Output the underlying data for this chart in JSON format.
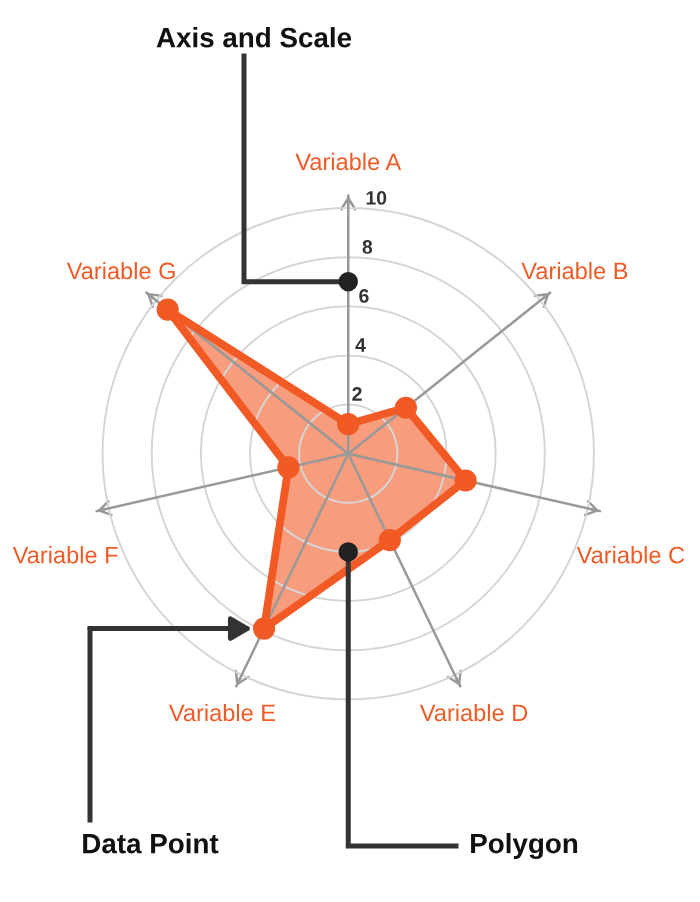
{
  "chart_data": {
    "type": "radar",
    "categories": [
      "Variable A",
      "Variable B",
      "Variable C",
      "Variable D",
      "Variable E",
      "Variable F",
      "Variable G"
    ],
    "series": [
      {
        "color": "#f15a24",
        "values": [
          1.2,
          3.0,
          4.9,
          3.9,
          7.9,
          2.5,
          9.4
        ]
      }
    ],
    "ylim": [
      0,
      10.5
    ],
    "yticks": [
      2,
      4,
      6,
      8,
      10
    ],
    "grid": true,
    "marker": "circle",
    "line_style": "solid",
    "annotations": [
      "Axis and Scale",
      "Data Point",
      "Polygon"
    ]
  }
}
